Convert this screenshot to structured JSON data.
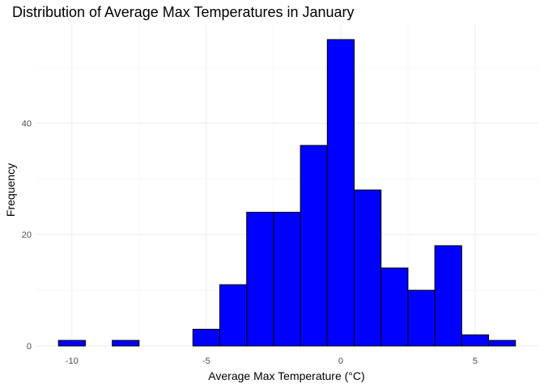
{
  "chart_data": {
    "type": "bar",
    "title": "Distribution of Average Max Temperatures in January",
    "xlabel": "Average Max Temperature (°C)",
    "ylabel": "Frequency",
    "bin_width": 1,
    "bins": [
      {
        "x_start": -10.5,
        "x_end": -9.5,
        "count": 1
      },
      {
        "x_start": -9.5,
        "x_end": -8.5,
        "count": 0
      },
      {
        "x_start": -8.5,
        "x_end": -7.5,
        "count": 1
      },
      {
        "x_start": -7.5,
        "x_end": -6.5,
        "count": 0
      },
      {
        "x_start": -6.5,
        "x_end": -5.5,
        "count": 0
      },
      {
        "x_start": -5.5,
        "x_end": -4.5,
        "count": 3
      },
      {
        "x_start": -4.5,
        "x_end": -3.5,
        "count": 11
      },
      {
        "x_start": -3.5,
        "x_end": -2.5,
        "count": 24
      },
      {
        "x_start": -2.5,
        "x_end": -1.5,
        "count": 24
      },
      {
        "x_start": -1.5,
        "x_end": -0.5,
        "count": 36
      },
      {
        "x_start": -0.5,
        "x_end": 0.5,
        "count": 55
      },
      {
        "x_start": 0.5,
        "x_end": 1.5,
        "count": 28
      },
      {
        "x_start": 1.5,
        "x_end": 2.5,
        "count": 14
      },
      {
        "x_start": 2.5,
        "x_end": 3.5,
        "count": 10
      },
      {
        "x_start": 3.5,
        "x_end": 4.5,
        "count": 18
      },
      {
        "x_start": 4.5,
        "x_end": 5.5,
        "count": 2
      },
      {
        "x_start": 5.5,
        "x_end": 6.5,
        "count": 1
      }
    ],
    "x_ticks": [
      -10,
      -5,
      0,
      5
    ],
    "y_ticks": [
      0,
      20,
      40
    ],
    "xlim": [
      -11.35,
      7.35
    ],
    "ylim": [
      0,
      57.75
    ],
    "bar_color": "#0000ff",
    "bar_edge_color": "#000000",
    "grid": true,
    "legend": false
  }
}
